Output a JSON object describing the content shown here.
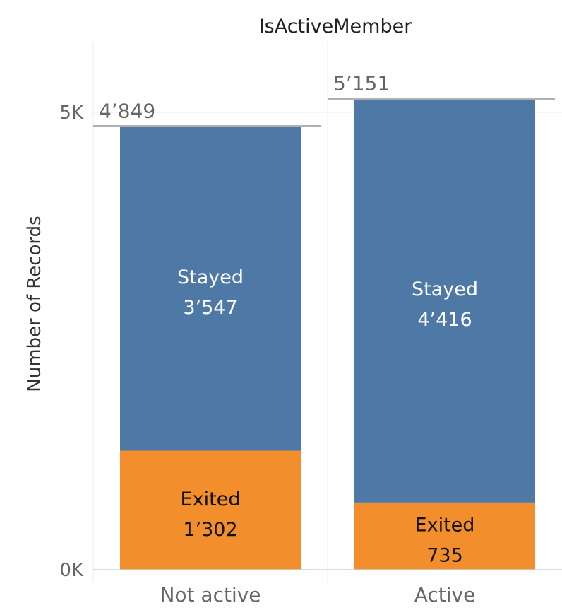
{
  "chart_data": {
    "type": "bar",
    "stacked": true,
    "title": "IsActiveMember",
    "ylabel": "Number of Records",
    "xlabel": "",
    "ylim": [
      0,
      5600
    ],
    "y_ticks": [
      {
        "value": 0,
        "label": "0K"
      },
      {
        "value": 5000,
        "label": "5K"
      }
    ],
    "categories": [
      "Not active",
      "Active"
    ],
    "series": [
      {
        "name": "Exited",
        "color": "#f28e2b",
        "label_color": "#111111",
        "values": [
          1302,
          735
        ],
        "labels": [
          "1’302",
          "735"
        ]
      },
      {
        "name": "Stayed",
        "color": "#4e79a7",
        "label_color": "#ffffff",
        "values": [
          3547,
          4416
        ],
        "labels": [
          "3’547",
          "4’416"
        ]
      }
    ],
    "totals": [
      {
        "value": 4849,
        "label": "4’849"
      },
      {
        "value": 5151,
        "label": "5’151"
      }
    ],
    "grid": true,
    "reference_line_color": "#b0b0b0"
  }
}
